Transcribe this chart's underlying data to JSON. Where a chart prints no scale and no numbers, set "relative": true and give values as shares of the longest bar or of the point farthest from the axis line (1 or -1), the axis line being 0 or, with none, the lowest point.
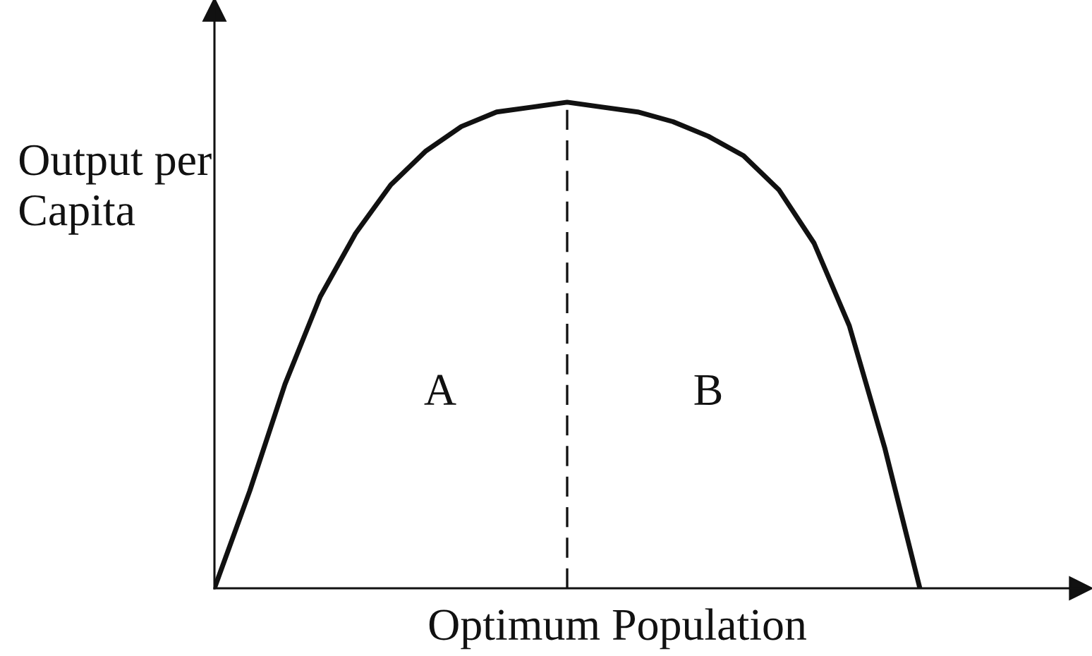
{
  "chart_data": {
    "type": "line",
    "xlabel": "Optimum Population",
    "ylabel": "Output per\nCapita",
    "categories": [
      null,
      null,
      null,
      null,
      null,
      null,
      null,
      null,
      null,
      null,
      null,
      null,
      null,
      null,
      null,
      null,
      null,
      null,
      null,
      null,
      null
    ],
    "values": [
      0,
      0.2,
      0.42,
      0.6,
      0.73,
      0.83,
      0.9,
      0.95,
      0.98,
      0.99,
      1,
      0.99,
      0.98,
      0.96,
      0.93,
      0.89,
      0.82,
      0.71,
      0.54,
      0.29,
      0
    ],
    "color": "#111111",
    "line_style": "solid",
    "relative": true,
    "grid": false,
    "annotations": [
      "A",
      "B"
    ]
  }
}
